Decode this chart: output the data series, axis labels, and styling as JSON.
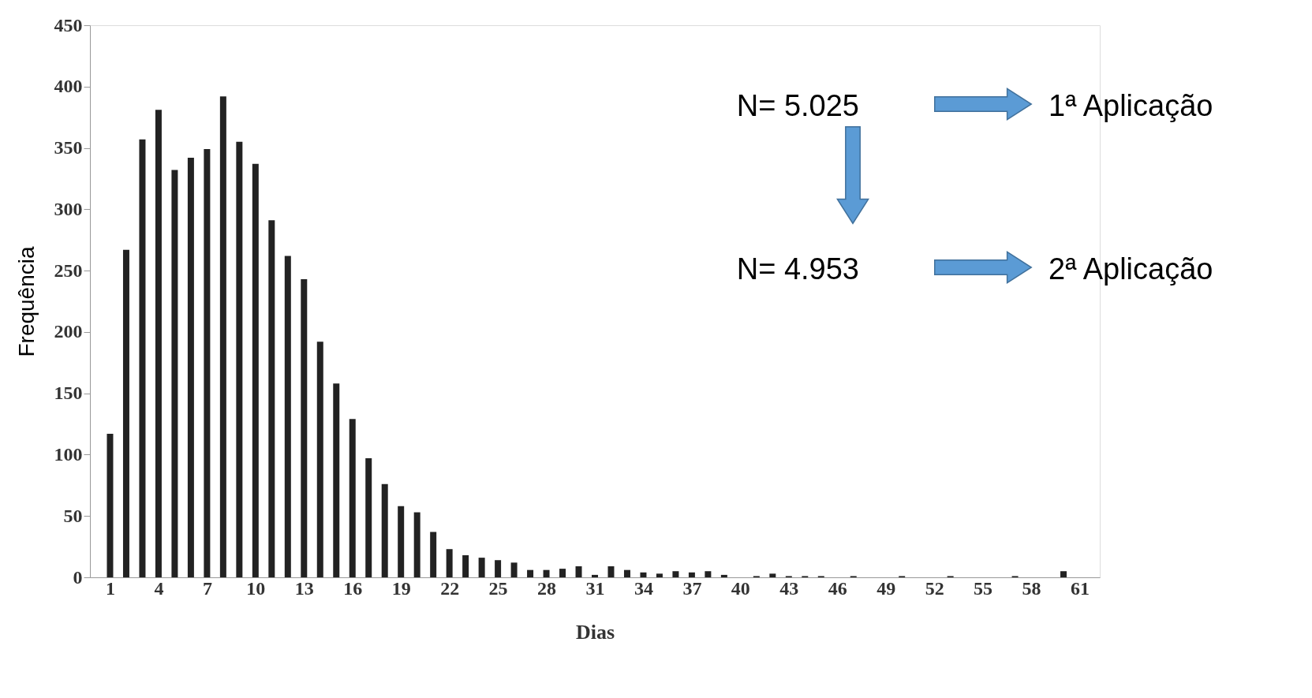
{
  "chart_data": {
    "type": "bar",
    "xlabel": "Dias",
    "ylabel": "Frequência",
    "x": [
      1,
      2,
      3,
      4,
      5,
      6,
      7,
      8,
      9,
      10,
      11,
      12,
      13,
      14,
      15,
      16,
      17,
      18,
      19,
      20,
      21,
      22,
      23,
      24,
      25,
      26,
      27,
      28,
      29,
      30,
      31,
      32,
      33,
      34,
      35,
      36,
      37,
      38,
      39,
      40,
      41,
      42,
      43,
      44,
      45,
      46,
      47,
      48,
      49,
      50,
      51,
      52,
      53,
      54,
      55,
      56,
      57,
      58,
      59,
      60,
      61
    ],
    "values": [
      117,
      267,
      357,
      381,
      332,
      342,
      349,
      392,
      355,
      337,
      291,
      262,
      243,
      192,
      158,
      129,
      97,
      76,
      58,
      53,
      37,
      23,
      18,
      16,
      14,
      12,
      6,
      6,
      7,
      9,
      2,
      9,
      6,
      4,
      3,
      5,
      4,
      5,
      2,
      0,
      1,
      3,
      1,
      1,
      1,
      0,
      1,
      0,
      0,
      1,
      0,
      0,
      1,
      0,
      0,
      0,
      1,
      0,
      0,
      5,
      0
    ],
    "color": "#222222",
    "xlim": [
      0,
      62
    ],
    "xticks": [
      1,
      4,
      7,
      10,
      13,
      16,
      19,
      22,
      25,
      28,
      31,
      34,
      37,
      40,
      43,
      46,
      49,
      52,
      55,
      58,
      61
    ],
    "ylim": [
      0,
      450
    ],
    "yticks": [
      0,
      50,
      100,
      150,
      200,
      250,
      300,
      350,
      400,
      450
    ],
    "grid": false,
    "annotations": [
      "N= 5.025",
      "1ª Aplicação",
      "N= 4.953",
      "2ª Aplicação"
    ]
  }
}
